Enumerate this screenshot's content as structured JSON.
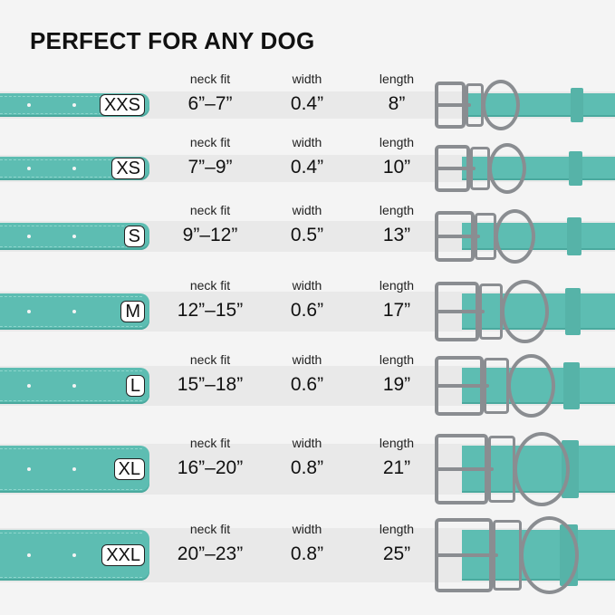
{
  "title": "PERFECT FOR ANY DOG",
  "labels": {
    "neck_fit": "neck fit",
    "width": "width",
    "length": "length"
  },
  "colors": {
    "strap": "#5dbdb2",
    "hardware": "#8a8d91",
    "background": "#f4f4f4"
  },
  "sizes": [
    {
      "size": "XXS",
      "neck_fit": "6”–7”",
      "width": "0.4”",
      "length": "8”"
    },
    {
      "size": "XS",
      "neck_fit": "7”–9”",
      "width": "0.4”",
      "length": "10”"
    },
    {
      "size": "S",
      "neck_fit": "9”–12”",
      "width": "0.5”",
      "length": "13”"
    },
    {
      "size": "M",
      "neck_fit": "12”–15”",
      "width": "0.6”",
      "length": "17”"
    },
    {
      "size": "L",
      "neck_fit": "15”–18”",
      "width": "0.6”",
      "length": "19”"
    },
    {
      "size": "XL",
      "neck_fit": "16”–20”",
      "width": "0.8”",
      "length": "21”"
    },
    {
      "size": "XXL",
      "neck_fit": "20”–23”",
      "width": "0.8”",
      "length": "25”"
    }
  ]
}
